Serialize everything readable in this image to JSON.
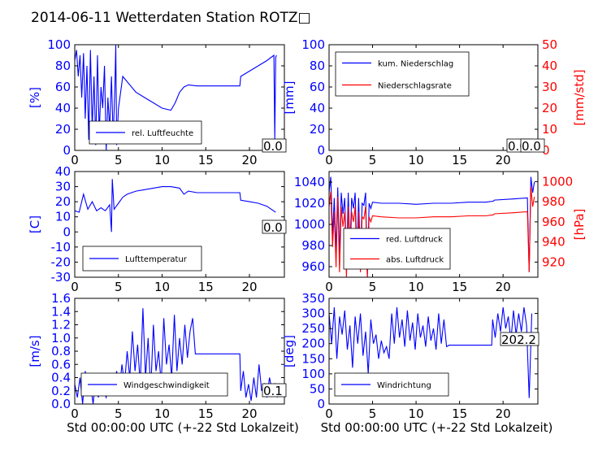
{
  "title": "2014-06-11 Wetterdaten Station ROTZ□",
  "chart_data": [
    {
      "id": "humidity",
      "type": "line",
      "ylabel": "[%]",
      "xlim": [
        0,
        24
      ],
      "ylim": [
        0,
        100
      ],
      "xticks": [
        0,
        5,
        10,
        15,
        20
      ],
      "yticks": [
        0,
        20,
        40,
        60,
        80,
        100
      ],
      "grid": false,
      "legend_placement": "lower-center",
      "annotation": "0.0",
      "series": [
        {
          "name": "rel. Luftfeuchte",
          "color": "#0000ff",
          "x": [
            0,
            0.2,
            0.4,
            0.6,
            0.8,
            1.0,
            1.2,
            1.4,
            1.6,
            1.8,
            2.0,
            2.2,
            2.4,
            2.6,
            2.8,
            3.0,
            3.2,
            3.4,
            3.6,
            3.8,
            4.0,
            4.2,
            4.4,
            4.6,
            4.7,
            4.8,
            5.0,
            5.5,
            6.0,
            7.0,
            8.0,
            9.0,
            10.0,
            11.0,
            11.5,
            12.0,
            12.5,
            13.0,
            14.0,
            15.0,
            16.0,
            17.0,
            18.0,
            18.9,
            19.0,
            20.0,
            21.0,
            22.0,
            22.8,
            22.9,
            23.0,
            23.1
          ],
          "y": [
            85,
            95,
            70,
            90,
            50,
            92,
            30,
            80,
            10,
            95,
            20,
            70,
            5,
            90,
            15,
            60,
            40,
            80,
            0,
            50,
            20,
            70,
            10,
            60,
            100,
            5,
            40,
            70,
            65,
            55,
            50,
            45,
            40,
            38,
            45,
            55,
            60,
            62,
            61,
            61,
            61,
            61,
            61,
            61,
            70,
            75,
            80,
            85,
            90,
            10,
            88,
            90
          ]
        }
      ]
    },
    {
      "id": "precipitation",
      "type": "line",
      "ylabel": "[mm]",
      "ylabel_right": "[mm/std]",
      "xlim": [
        0,
        24
      ],
      "ylim": [
        0,
        100
      ],
      "ylim_right": [
        0,
        50
      ],
      "xticks": [
        0,
        5,
        10,
        15,
        20
      ],
      "yticks": [
        0,
        20,
        40,
        60,
        80,
        100
      ],
      "yticks_right": [
        0,
        10,
        20,
        30,
        40,
        50
      ],
      "grid": false,
      "legend_placement": "upper-left",
      "annotation": "0.0",
      "annotation2": "0.0",
      "series": [
        {
          "name": "kum. Niederschlag",
          "color": "#0000ff",
          "x": [
            0,
            24
          ],
          "y": [
            0,
            0
          ]
        },
        {
          "name": "Niederschlagsrate",
          "color": "#ff0000",
          "axis": "right",
          "x": [
            0,
            24
          ],
          "y": [
            0,
            0
          ]
        }
      ]
    },
    {
      "id": "temperature",
      "type": "line",
      "ylabel": "[C]",
      "xlim": [
        0,
        24
      ],
      "ylim": [
        -30,
        40
      ],
      "xticks": [
        0,
        5,
        10,
        15,
        20
      ],
      "yticks": [
        -30,
        -20,
        -10,
        0,
        10,
        20,
        30,
        40
      ],
      "grid": false,
      "legend_placement": "lower-center",
      "annotation": "0.0",
      "series": [
        {
          "name": "Lufttemperatur",
          "color": "#0000ff",
          "x": [
            0,
            0.5,
            1.0,
            1.5,
            2.0,
            2.5,
            3.0,
            3.5,
            4.0,
            4.2,
            4.3,
            4.5,
            5.0,
            5.5,
            6.0,
            7.0,
            8.0,
            9.0,
            10.0,
            11.0,
            12.0,
            12.5,
            13.0,
            14.0,
            15.0,
            16.0,
            17.0,
            18.0,
            18.9,
            19.0,
            20.0,
            21.0,
            22.0,
            22.5,
            23.0
          ],
          "y": [
            14,
            13,
            25,
            15,
            20,
            14,
            16,
            14,
            18,
            0,
            35,
            15,
            19,
            23,
            25,
            27,
            28,
            29,
            30,
            30,
            29,
            25,
            27,
            26,
            26,
            26,
            26,
            26,
            26,
            21,
            20,
            19,
            17,
            15,
            13
          ]
        }
      ]
    },
    {
      "id": "pressure",
      "type": "line",
      "ylabel_right": "[hPa]",
      "xlim": [
        0,
        24
      ],
      "ylim": [
        950,
        1050
      ],
      "ylim_right": [
        905,
        1010
      ],
      "xticks": [
        0,
        5,
        10,
        15,
        20
      ],
      "yticks": [
        960,
        980,
        1000,
        1020,
        1040
      ],
      "yticks_right": [
        920,
        940,
        960,
        980,
        1000
      ],
      "grid": false,
      "legend_placement": "lower-center",
      "series": [
        {
          "name": "red. Luftdruck",
          "color": "#0000ff",
          "x": [
            0,
            0.2,
            0.4,
            0.6,
            0.8,
            1.0,
            1.2,
            1.4,
            1.6,
            1.8,
            2.0,
            2.2,
            2.4,
            2.6,
            2.8,
            3.0,
            3.2,
            3.4,
            3.6,
            3.8,
            4.0,
            4.2,
            4.4,
            4.6,
            4.8,
            5.0,
            6.0,
            8.0,
            10.0,
            12.0,
            14.0,
            16.0,
            18.0,
            18.9,
            19.0,
            21.0,
            22.8,
            23.0,
            23.2,
            23.4,
            23.6
          ],
          "y": [
            1030,
            1045,
            990,
            1025,
            975,
            1035,
            970,
            1030,
            1010,
            1025,
            960,
            1030,
            975,
            1025,
            1015,
            1030,
            970,
            1025,
            965,
            1020,
            1018,
            1030,
            950,
            1020,
            1015,
            1021,
            1020,
            1020,
            1019,
            1020,
            1020,
            1021,
            1021,
            1022,
            1023,
            1024,
            1025,
            955,
            1045,
            1030,
            1040
          ]
        },
        {
          "name": "abs. Luftdruck",
          "color": "#ff0000",
          "axis": "right",
          "x": [
            0,
            0.2,
            0.4,
            0.6,
            0.8,
            1.0,
            1.2,
            1.4,
            1.6,
            1.8,
            2.0,
            2.2,
            2.4,
            2.6,
            2.8,
            3.0,
            3.2,
            3.4,
            3.6,
            3.8,
            4.0,
            4.2,
            4.4,
            4.6,
            4.8,
            5.0,
            6.0,
            8.0,
            10.0,
            12.0,
            14.0,
            16.0,
            18.0,
            18.9,
            19.0,
            21.0,
            22.8,
            23.0,
            23.2,
            23.4,
            23.6
          ],
          "y": [
            975,
            990,
            935,
            970,
            915,
            985,
            910,
            975,
            955,
            970,
            905,
            975,
            920,
            970,
            960,
            975,
            915,
            970,
            910,
            965,
            963,
            975,
            905,
            965,
            960,
            966,
            965,
            964,
            964,
            965,
            965,
            966,
            966,
            967,
            968,
            969,
            970,
            910,
            995,
            975,
            985
          ]
        }
      ]
    },
    {
      "id": "wind-speed",
      "type": "line",
      "ylabel": "[m/s]",
      "xlabel": "Std 00:00:00 UTC (+-22 Std Lokalzeit)",
      "xlim": [
        0,
        24
      ],
      "ylim": [
        0,
        1.6
      ],
      "xticks": [
        0,
        5,
        10,
        15,
        20
      ],
      "yticks": [
        0.0,
        0.2,
        0.4,
        0.6,
        0.8,
        1.0,
        1.2,
        1.4,
        1.6
      ],
      "grid": false,
      "legend_placement": "lower-center",
      "annotation": "0.1",
      "series": [
        {
          "name": "Windgeschwindigkeit",
          "color": "#0000ff",
          "x": [
            0,
            0.3,
            0.6,
            0.9,
            1.2,
            1.5,
            1.8,
            2.1,
            2.4,
            2.7,
            3.0,
            3.3,
            3.6,
            3.9,
            4.2,
            4.5,
            4.8,
            5.1,
            5.4,
            5.7,
            6.0,
            6.3,
            6.6,
            6.9,
            7.2,
            7.5,
            7.8,
            8.1,
            8.4,
            8.7,
            9.0,
            9.3,
            9.6,
            9.9,
            10.2,
            10.5,
            10.8,
            11.1,
            11.4,
            11.7,
            12.0,
            12.3,
            12.6,
            12.9,
            13.2,
            13.5,
            13.8,
            14.5,
            16.0,
            17.5,
            18.9,
            19.0,
            19.3,
            19.6,
            19.9,
            20.2,
            20.5,
            20.8,
            21.1,
            21.4,
            21.7,
            22.0,
            22.3,
            22.6,
            22.9,
            23.2
          ],
          "y": [
            0.3,
            0.1,
            0.4,
            0.0,
            0.5,
            0.2,
            0.3,
            0.0,
            0.4,
            0.1,
            0.3,
            0.2,
            0.1,
            0.4,
            0.2,
            0.3,
            0.5,
            0.2,
            0.6,
            0.3,
            0.8,
            0.4,
            1.1,
            0.5,
            0.9,
            0.3,
            1.45,
            0.4,
            1.0,
            0.2,
            1.2,
            0.5,
            0.8,
            0.3,
            1.3,
            0.6,
            0.9,
            0.4,
            1.35,
            0.5,
            1.0,
            0.6,
            1.2,
            0.7,
            1.1,
            1.3,
            0.76,
            0.76,
            0.76,
            0.76,
            0.76,
            0.2,
            0.5,
            0.1,
            0.3,
            0.05,
            0.4,
            0.1,
            0.6,
            0.2,
            0.3,
            0.1,
            0.4,
            0.2,
            0.3,
            0.1
          ]
        }
      ]
    },
    {
      "id": "wind-direction",
      "type": "line",
      "ylabel": "[deg]",
      "xlabel": "Std 00:00:00 UTC (+-22 Std Lokalzeit)",
      "xlim": [
        0,
        24
      ],
      "ylim": [
        0,
        350
      ],
      "xticks": [
        0,
        5,
        10,
        15,
        20
      ],
      "yticks": [
        0,
        50,
        100,
        150,
        200,
        250,
        300,
        350
      ],
      "grid": false,
      "legend_placement": "lower-center",
      "annotation": "202.2",
      "series": [
        {
          "name": "Windrichtung",
          "color": "#0000ff",
          "x": [
            0,
            0.3,
            0.6,
            0.9,
            1.2,
            1.5,
            1.8,
            2.1,
            2.4,
            2.7,
            3.0,
            3.3,
            3.6,
            3.9,
            4.2,
            4.5,
            4.8,
            5.1,
            5.4,
            5.7,
            6.0,
            6.3,
            6.6,
            6.9,
            7.2,
            7.5,
            7.8,
            8.1,
            8.4,
            8.7,
            9.0,
            9.3,
            9.6,
            9.9,
            10.2,
            10.5,
            10.8,
            11.1,
            11.4,
            11.7,
            12.0,
            12.3,
            12.6,
            12.9,
            13.2,
            13.5,
            13.8,
            14.5,
            16.0,
            17.5,
            18.7,
            18.8,
            19.1,
            19.4,
            19.7,
            20.0,
            20.3,
            20.6,
            20.9,
            21.2,
            21.5,
            21.8,
            22.1,
            22.4,
            22.7,
            23.0,
            23.3
          ],
          "y": [
            300,
            200,
            320,
            150,
            290,
            230,
            310,
            180,
            260,
            120,
            290,
            200,
            300,
            160,
            240,
            100,
            280,
            200,
            230,
            150,
            210,
            170,
            190,
            150,
            300,
            200,
            320,
            220,
            280,
            190,
            310,
            210,
            270,
            180,
            300,
            220,
            260,
            190,
            290,
            210,
            250,
            180,
            300,
            200,
            280,
            190,
            195,
            195,
            195,
            195,
            195,
            280,
            220,
            300,
            240,
            320,
            250,
            290,
            210,
            310,
            230,
            300,
            240,
            320,
            260,
            20,
            300
          ]
        }
      ]
    }
  ]
}
